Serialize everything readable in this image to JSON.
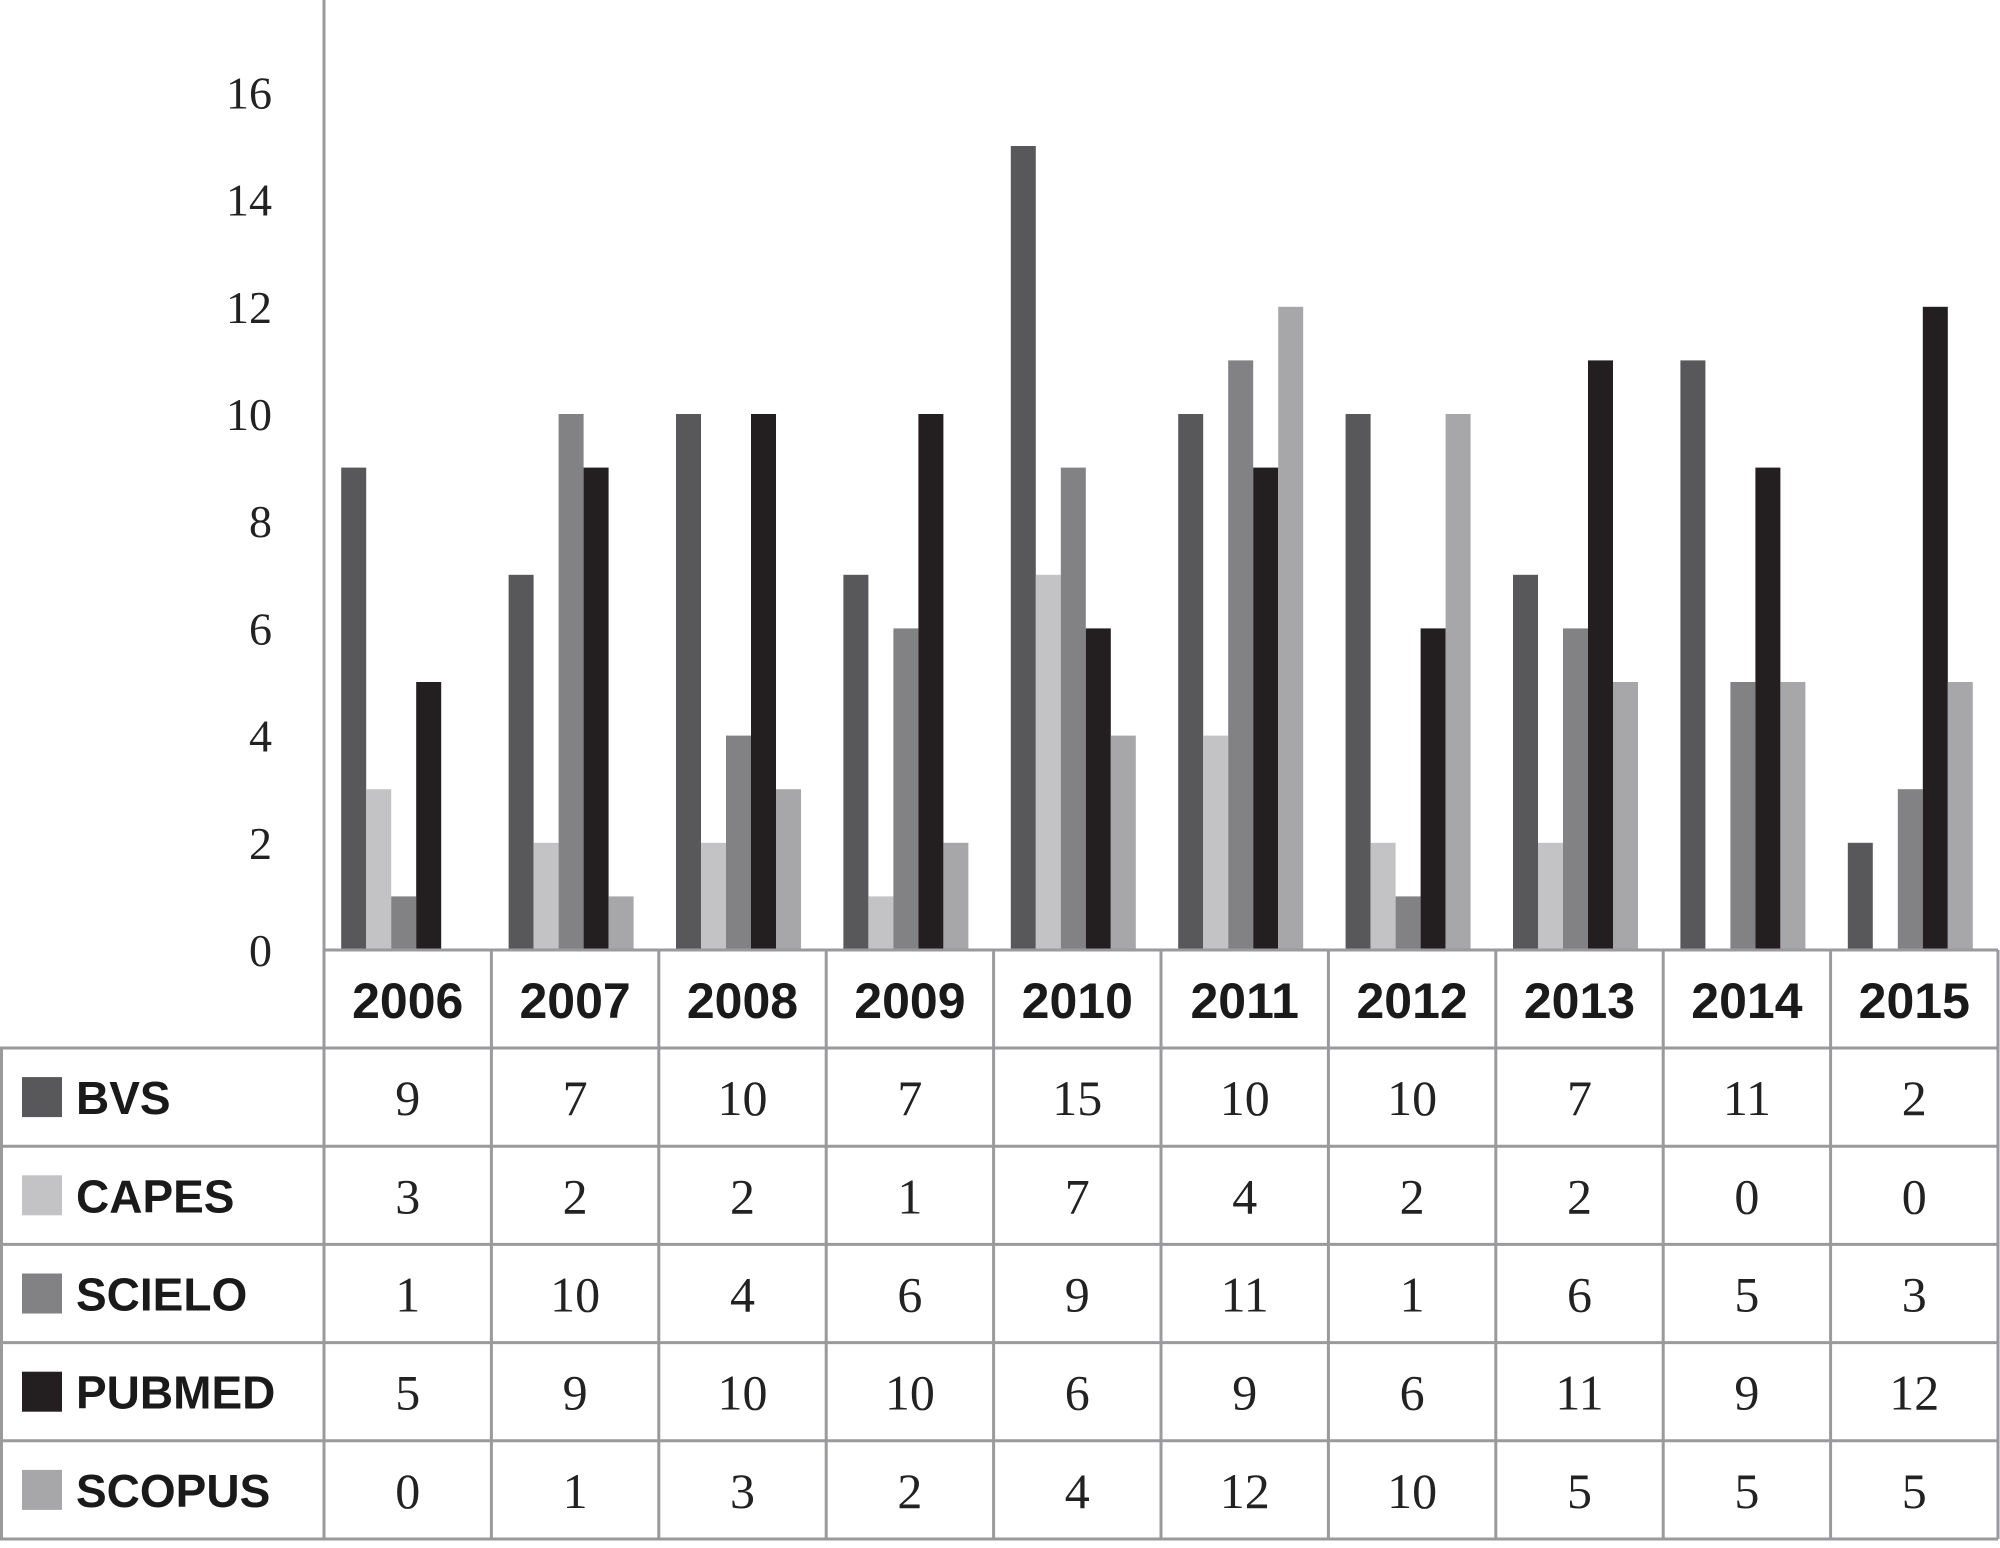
{
  "chart_data": {
    "type": "bar",
    "categories": [
      "2006",
      "2007",
      "2008",
      "2009",
      "2010",
      "2011",
      "2012",
      "2013",
      "2014",
      "2015"
    ],
    "series": [
      {
        "name": "BVS",
        "color": "#58585a",
        "values": [
          9,
          7,
          10,
          7,
          15,
          10,
          10,
          7,
          11,
          2
        ]
      },
      {
        "name": "CAPES",
        "color": "#c3c3c5",
        "values": [
          3,
          2,
          2,
          1,
          7,
          4,
          2,
          2,
          0,
          0
        ]
      },
      {
        "name": "SCIELO",
        "color": "#828285",
        "values": [
          1,
          10,
          4,
          6,
          9,
          11,
          1,
          6,
          5,
          3
        ]
      },
      {
        "name": "PUBMED",
        "color": "#231f20",
        "values": [
          5,
          9,
          10,
          10,
          6,
          9,
          6,
          11,
          9,
          12
        ]
      },
      {
        "name": "SCOPUS",
        "color": "#a7a7aa",
        "values": [
          0,
          1,
          3,
          2,
          4,
          12,
          10,
          5,
          5,
          5
        ]
      }
    ],
    "yticks": [
      0,
      2,
      4,
      6,
      8,
      10,
      12,
      14,
      16
    ],
    "ylim": [
      0,
      16
    ],
    "grid": false,
    "legend": "data-table"
  }
}
